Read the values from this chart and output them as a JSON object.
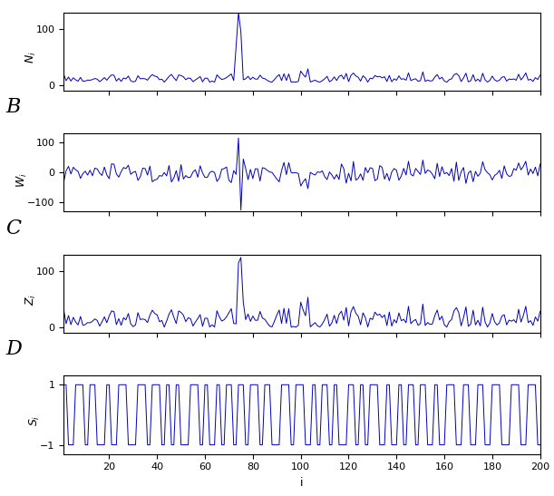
{
  "n": 200,
  "line_color": "#0000BB",
  "line_width": 0.7,
  "background_color": "#ffffff",
  "panel_letters": [
    "",
    "B",
    "C",
    "D"
  ],
  "xlabel": "i",
  "seed": 42,
  "ylim_A": [
    -10,
    130
  ],
  "ylim_B": [
    -130,
    130
  ],
  "ylim_C": [
    -10,
    130
  ],
  "ylim_D": [
    -1.3,
    1.3
  ],
  "yticks_A": [
    0,
    100
  ],
  "yticks_B": [
    -100,
    0,
    100
  ],
  "yticks_C": [
    0,
    100
  ],
  "yticks_D": [
    -1,
    1
  ],
  "xticks": [
    20,
    40,
    60,
    80,
    100,
    120,
    140,
    160,
    180,
    200
  ],
  "letter_fontsize": 16,
  "ylabel_fontsize": 9,
  "tick_fontsize": 8
}
